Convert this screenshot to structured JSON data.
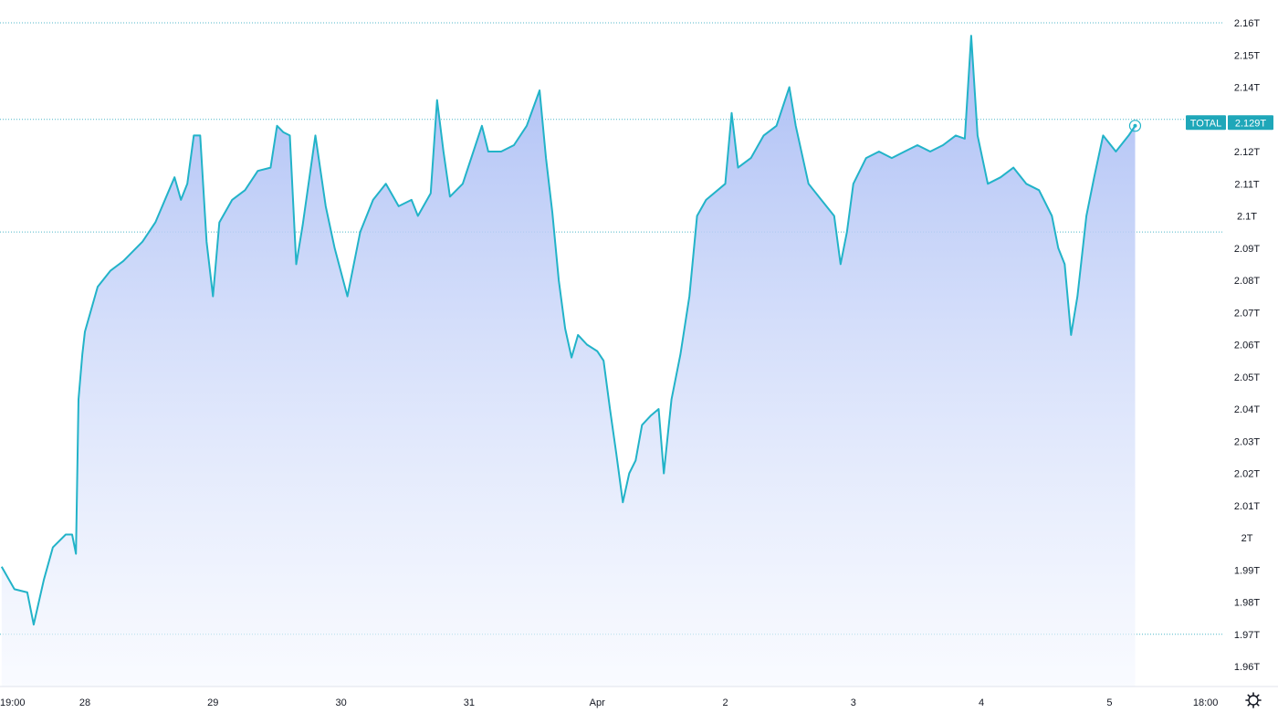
{
  "chart_data": {
    "type": "area",
    "series": [
      {
        "name": "TOTAL"
      }
    ],
    "y_unit": "T",
    "ylim": [
      1.955,
      2.165
    ],
    "y_ticks": [
      1.96,
      1.97,
      1.98,
      1.99,
      2.0,
      2.01,
      2.02,
      2.03,
      2.04,
      2.05,
      2.06,
      2.07,
      2.08,
      2.09,
      2.1,
      2.11,
      2.12,
      2.13,
      2.14,
      2.15,
      2.16
    ],
    "y_tick_labels": [
      "1.96T",
      "1.97T",
      "1.98T",
      "1.99T",
      "2T",
      "2.01T",
      "2.02T",
      "2.03T",
      "2.04T",
      "2.05T",
      "2.06T",
      "2.07T",
      "2.08T",
      "2.09T",
      "2.1T",
      "2.11T",
      "2.12T",
      "2.13T",
      "2.14T",
      "2.15T",
      "2.16T"
    ],
    "xlim": [
      0.35,
      9.0
    ],
    "x_ticks": [
      {
        "pos": 0.0,
        "label": "19:00"
      },
      {
        "pos": 1.0,
        "label": "28"
      },
      {
        "pos": 2.0,
        "label": "29"
      },
      {
        "pos": 3.0,
        "label": "30"
      },
      {
        "pos": 4.0,
        "label": "31"
      },
      {
        "pos": 5.0,
        "label": "Apr"
      },
      {
        "pos": 6.0,
        "label": "2"
      },
      {
        "pos": 7.0,
        "label": "3"
      },
      {
        "pos": 8.0,
        "label": "4"
      },
      {
        "pos": 9.0,
        "label": "5"
      },
      {
        "pos": 9.75,
        "label": "18:00"
      }
    ],
    "points": [
      [
        0.35,
        1.991
      ],
      [
        0.45,
        1.984
      ],
      [
        0.55,
        1.983
      ],
      [
        0.6,
        1.973
      ],
      [
        0.68,
        1.987
      ],
      [
        0.75,
        1.997
      ],
      [
        0.85,
        2.001
      ],
      [
        0.9,
        2.001
      ],
      [
        0.93,
        1.995
      ],
      [
        0.95,
        2.043
      ],
      [
        0.98,
        2.057
      ],
      [
        1.0,
        2.064
      ],
      [
        1.1,
        2.078
      ],
      [
        1.2,
        2.083
      ],
      [
        1.3,
        2.086
      ],
      [
        1.45,
        2.092
      ],
      [
        1.55,
        2.098
      ],
      [
        1.7,
        2.112
      ],
      [
        1.75,
        2.105
      ],
      [
        1.8,
        2.11
      ],
      [
        1.85,
        2.125
      ],
      [
        1.9,
        2.125
      ],
      [
        1.95,
        2.092
      ],
      [
        2.0,
        2.075
      ],
      [
        2.05,
        2.098
      ],
      [
        2.15,
        2.105
      ],
      [
        2.25,
        2.108
      ],
      [
        2.35,
        2.114
      ],
      [
        2.45,
        2.115
      ],
      [
        2.5,
        2.128
      ],
      [
        2.55,
        2.126
      ],
      [
        2.6,
        2.125
      ],
      [
        2.65,
        2.085
      ],
      [
        2.7,
        2.097
      ],
      [
        2.8,
        2.125
      ],
      [
        2.88,
        2.103
      ],
      [
        2.95,
        2.09
      ],
      [
        3.05,
        2.075
      ],
      [
        3.15,
        2.095
      ],
      [
        3.25,
        2.105
      ],
      [
        3.35,
        2.11
      ],
      [
        3.45,
        2.103
      ],
      [
        3.55,
        2.105
      ],
      [
        3.6,
        2.1
      ],
      [
        3.7,
        2.107
      ],
      [
        3.75,
        2.136
      ],
      [
        3.8,
        2.12
      ],
      [
        3.85,
        2.106
      ],
      [
        3.95,
        2.11
      ],
      [
        4.05,
        2.122
      ],
      [
        4.1,
        2.128
      ],
      [
        4.15,
        2.12
      ],
      [
        4.25,
        2.12
      ],
      [
        4.35,
        2.122
      ],
      [
        4.45,
        2.128
      ],
      [
        4.55,
        2.139
      ],
      [
        4.6,
        2.118
      ],
      [
        4.65,
        2.101
      ],
      [
        4.7,
        2.08
      ],
      [
        4.75,
        2.065
      ],
      [
        4.8,
        2.056
      ],
      [
        4.85,
        2.063
      ],
      [
        4.92,
        2.06
      ],
      [
        5.0,
        2.058
      ],
      [
        5.05,
        2.055
      ],
      [
        5.1,
        2.04
      ],
      [
        5.15,
        2.026
      ],
      [
        5.2,
        2.011
      ],
      [
        5.25,
        2.02
      ],
      [
        5.3,
        2.024
      ],
      [
        5.35,
        2.035
      ],
      [
        5.42,
        2.038
      ],
      [
        5.48,
        2.04
      ],
      [
        5.52,
        2.02
      ],
      [
        5.58,
        2.043
      ],
      [
        5.65,
        2.057
      ],
      [
        5.72,
        2.075
      ],
      [
        5.78,
        2.1
      ],
      [
        5.85,
        2.105
      ],
      [
        6.0,
        2.11
      ],
      [
        6.05,
        2.132
      ],
      [
        6.1,
        2.115
      ],
      [
        6.2,
        2.118
      ],
      [
        6.3,
        2.125
      ],
      [
        6.4,
        2.128
      ],
      [
        6.5,
        2.14
      ],
      [
        6.55,
        2.128
      ],
      [
        6.65,
        2.11
      ],
      [
        6.75,
        2.105
      ],
      [
        6.85,
        2.1
      ],
      [
        6.9,
        2.085
      ],
      [
        6.95,
        2.095
      ],
      [
        7.0,
        2.11
      ],
      [
        7.1,
        2.118
      ],
      [
        7.2,
        2.12
      ],
      [
        7.3,
        2.118
      ],
      [
        7.4,
        2.12
      ],
      [
        7.5,
        2.122
      ],
      [
        7.6,
        2.12
      ],
      [
        7.7,
        2.122
      ],
      [
        7.8,
        2.125
      ],
      [
        7.87,
        2.124
      ],
      [
        7.92,
        2.156
      ],
      [
        7.97,
        2.125
      ],
      [
        8.05,
        2.11
      ],
      [
        8.15,
        2.112
      ],
      [
        8.25,
        2.115
      ],
      [
        8.35,
        2.11
      ],
      [
        8.45,
        2.108
      ],
      [
        8.55,
        2.1
      ],
      [
        8.6,
        2.09
      ],
      [
        8.65,
        2.085
      ],
      [
        8.7,
        2.063
      ],
      [
        8.75,
        2.075
      ],
      [
        8.82,
        2.1
      ],
      [
        8.88,
        2.112
      ],
      [
        8.95,
        2.125
      ],
      [
        9.05,
        2.12
      ],
      [
        9.15,
        2.125
      ],
      [
        9.2,
        2.128
      ]
    ],
    "last_value_label": "2.129T",
    "series_label": "TOTAL",
    "reference_lines": [
      2.16,
      2.13,
      2.095,
      1.97
    ],
    "grid": false,
    "legend": "none",
    "colors": {
      "line": "#22b3c8",
      "area_top": "#a6baf4",
      "area_bottom": "#f5f8ff",
      "reference": "#4fb7c9",
      "badge": "#1fa7b9",
      "axis_text": "#131722"
    }
  }
}
